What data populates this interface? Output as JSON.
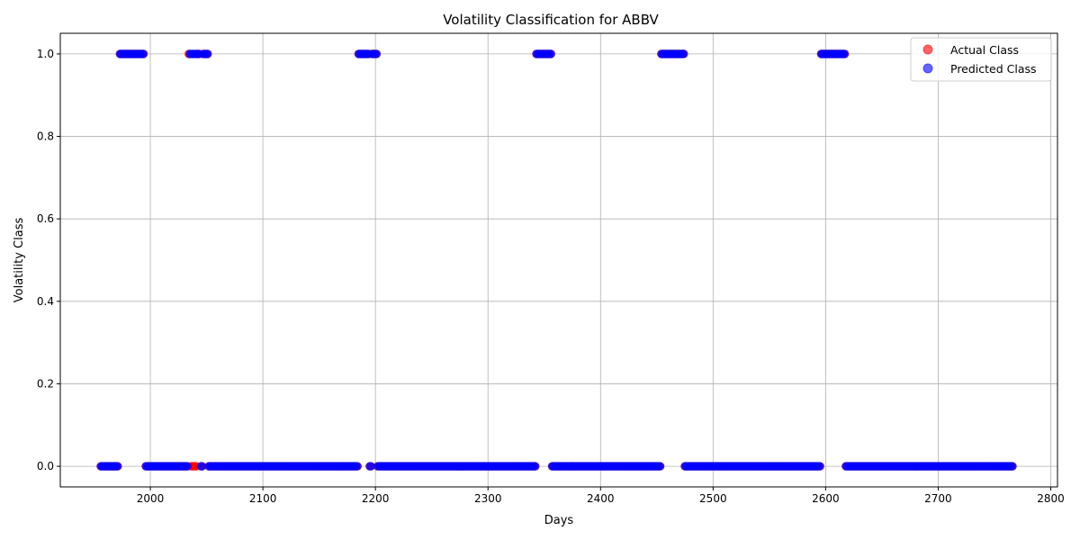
{
  "chart_data": {
    "type": "scatter",
    "title": "Volatility Classification for ABBV",
    "xlabel": "Days",
    "ylabel": "Volatility Class",
    "xlim": [
      1920,
      2806
    ],
    "ylim": [
      -0.05,
      1.05
    ],
    "xticks": [
      2000,
      2100,
      2200,
      2300,
      2400,
      2500,
      2600,
      2700,
      2800
    ],
    "yticks": [
      0.0,
      0.2,
      0.4,
      0.6,
      0.8,
      1.0
    ],
    "xtick_labels": [
      "2000",
      "2100",
      "2200",
      "2300",
      "2400",
      "2500",
      "2600",
      "2700",
      "2800"
    ],
    "ytick_labels": [
      "0.0",
      "0.2",
      "0.4",
      "0.6",
      "0.8",
      "1.0"
    ],
    "grid": true,
    "legend": "top-right",
    "series": [
      {
        "name": "Actual Class",
        "color": "#ff0000",
        "segments": [
          {
            "start": 1956,
            "end": 1971,
            "value": 0
          },
          {
            "start": 1973,
            "end": 1994,
            "value": 1
          },
          {
            "start": 1996,
            "end": 2033,
            "value": 0
          },
          {
            "start": 2034,
            "end": 2035,
            "value": 1
          },
          {
            "start": 2036,
            "end": 2041,
            "value": 0
          },
          {
            "start": 2042,
            "end": 2044,
            "value": 1
          },
          {
            "start": 2045,
            "end": 2046,
            "value": 0
          },
          {
            "start": 2047,
            "end": 2051,
            "value": 1
          },
          {
            "start": 2052,
            "end": 2184,
            "value": 0
          },
          {
            "start": 2185,
            "end": 2194,
            "value": 1
          },
          {
            "start": 2195,
            "end": 2196,
            "value": 0
          },
          {
            "start": 2197,
            "end": 2201,
            "value": 1
          },
          {
            "start": 2202,
            "end": 2342,
            "value": 0
          },
          {
            "start": 2343,
            "end": 2356,
            "value": 1
          },
          {
            "start": 2357,
            "end": 2453,
            "value": 0
          },
          {
            "start": 2454,
            "end": 2474,
            "value": 1
          },
          {
            "start": 2475,
            "end": 2595,
            "value": 0
          },
          {
            "start": 2596,
            "end": 2617,
            "value": 1
          },
          {
            "start": 2618,
            "end": 2766,
            "value": 0
          }
        ]
      },
      {
        "name": "Predicted Class",
        "color": "#0000ff",
        "segments": [
          {
            "start": 1956,
            "end": 1971,
            "value": 0
          },
          {
            "start": 1973,
            "end": 1994,
            "value": 1
          },
          {
            "start": 1996,
            "end": 2033,
            "value": 0
          },
          {
            "start": 2035,
            "end": 2043,
            "value": 1
          },
          {
            "start": 2045,
            "end": 2046,
            "value": 0
          },
          {
            "start": 2047,
            "end": 2051,
            "value": 1
          },
          {
            "start": 2052,
            "end": 2184,
            "value": 0
          },
          {
            "start": 2185,
            "end": 2194,
            "value": 1
          },
          {
            "start": 2195,
            "end": 2196,
            "value": 0
          },
          {
            "start": 2197,
            "end": 2201,
            "value": 1
          },
          {
            "start": 2202,
            "end": 2342,
            "value": 0
          },
          {
            "start": 2343,
            "end": 2356,
            "value": 1
          },
          {
            "start": 2357,
            "end": 2453,
            "value": 0
          },
          {
            "start": 2454,
            "end": 2474,
            "value": 1
          },
          {
            "start": 2475,
            "end": 2595,
            "value": 0
          },
          {
            "start": 2596,
            "end": 2617,
            "value": 1
          },
          {
            "start": 2618,
            "end": 2766,
            "value": 0
          }
        ]
      }
    ]
  }
}
